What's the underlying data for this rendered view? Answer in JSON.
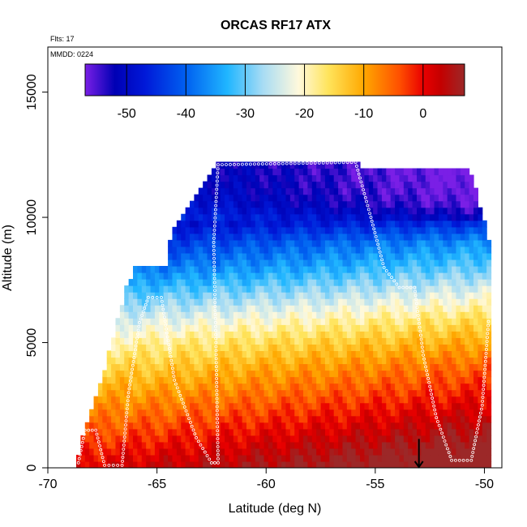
{
  "chart_data": {
    "type": "heatmap",
    "title": "ORCAS RF17 ATX",
    "annotations": {
      "flights": "Flts: 17",
      "date": "MMDD: 0224"
    },
    "xlabel": "Latitude (deg N)",
    "ylabel": "Altitude (m)",
    "xlim": [
      -70,
      -49.2
    ],
    "ylim": [
      0,
      16800
    ],
    "x_ticks": [
      -70,
      -65,
      -60,
      -55,
      -50
    ],
    "y_ticks": [
      0,
      5000,
      10000,
      15000
    ],
    "x_tick_labels": [
      "-70",
      "-65",
      "-60",
      "-55",
      "-50"
    ],
    "y_tick_labels": [
      "0",
      "5000",
      "10000",
      "15000"
    ],
    "colorbar": {
      "range": [
        -57,
        7
      ],
      "ticks": [
        -50,
        -40,
        -30,
        -20,
        -10,
        0
      ],
      "tick_labels": [
        "-50",
        "-40",
        "-30",
        "-20",
        "-10",
        "0"
      ],
      "stops": [
        {
          "v": -57,
          "c": "#7a1fe6"
        },
        {
          "v": -52,
          "c": "#0000b4"
        },
        {
          "v": -47,
          "c": "#0018d8"
        },
        {
          "v": -40,
          "c": "#0060f0"
        },
        {
          "v": -33,
          "c": "#20b6ff"
        },
        {
          "v": -27,
          "c": "#a8dcf4"
        },
        {
          "v": -21,
          "c": "#fff9dc"
        },
        {
          "v": -16,
          "c": "#ffe45c"
        },
        {
          "v": -10,
          "c": "#ffa800"
        },
        {
          "v": -4,
          "c": "#ff5000"
        },
        {
          "v": 0,
          "c": "#ea0000"
        },
        {
          "v": 3,
          "c": "#c40000"
        },
        {
          "v": 7,
          "c": "#9c2828"
        }
      ]
    },
    "coverage_top": [
      {
        "lat": -68.7,
        "alt": 400
      },
      {
        "lat": -68.5,
        "alt": 700
      },
      {
        "lat": -68.4,
        "alt": 1200
      },
      {
        "lat": -68.2,
        "alt": 1800
      },
      {
        "lat": -67.9,
        "alt": 2600
      },
      {
        "lat": -67.6,
        "alt": 3300
      },
      {
        "lat": -67.2,
        "alt": 4700
      },
      {
        "lat": -66.9,
        "alt": 5600
      },
      {
        "lat": -66.6,
        "alt": 6500
      },
      {
        "lat": -66.4,
        "alt": 7300
      },
      {
        "lat": -66.0,
        "alt": 8000
      },
      {
        "lat": -64.6,
        "alt": 8000
      },
      {
        "lat": -64.3,
        "alt": 9500
      },
      {
        "lat": -63.7,
        "alt": 10300
      },
      {
        "lat": -63.1,
        "alt": 11000
      },
      {
        "lat": -62.6,
        "alt": 11600
      },
      {
        "lat": -62.2,
        "alt": 12200
      },
      {
        "lat": -55.9,
        "alt": 12200
      },
      {
        "lat": -55.5,
        "alt": 11900
      },
      {
        "lat": -50.7,
        "alt": 11900
      },
      {
        "lat": -50.4,
        "alt": 11200
      },
      {
        "lat": -50.2,
        "alt": 10500
      },
      {
        "lat": -49.9,
        "alt": 9500
      },
      {
        "lat": -49.7,
        "alt": 8500
      },
      {
        "lat": -49.7,
        "alt": 0
      }
    ],
    "temperature_profile": [
      {
        "alt": 0,
        "t": 1
      },
      {
        "alt": 1000,
        "t": -3
      },
      {
        "alt": 2000,
        "t": -7
      },
      {
        "alt": 3000,
        "t": -11
      },
      {
        "alt": 4000,
        "t": -15
      },
      {
        "alt": 5000,
        "t": -20
      },
      {
        "alt": 6000,
        "t": -26
      },
      {
        "alt": 7000,
        "t": -33
      },
      {
        "alt": 8000,
        "t": -40
      },
      {
        "alt": 9000,
        "t": -46
      },
      {
        "alt": 10000,
        "t": -51
      },
      {
        "alt": 11000,
        "t": -54
      },
      {
        "alt": 12000,
        "t": -55
      }
    ],
    "flight_track": [
      {
        "lat": -68.6,
        "alt": 200
      },
      {
        "lat": -68.3,
        "alt": 1500
      },
      {
        "lat": -67.8,
        "alt": 1500
      },
      {
        "lat": -67.4,
        "alt": 100
      },
      {
        "lat": -66.6,
        "alt": 100
      },
      {
        "lat": -66.3,
        "alt": 3000
      },
      {
        "lat": -65.8,
        "alt": 5800
      },
      {
        "lat": -65.4,
        "alt": 6800
      },
      {
        "lat": -64.8,
        "alt": 6800
      },
      {
        "lat": -64.2,
        "alt": 3500
      },
      {
        "lat": -63.2,
        "alt": 1200
      },
      {
        "lat": -62.5,
        "alt": 200
      },
      {
        "lat": -62.2,
        "alt": 200
      },
      {
        "lat": -62.3,
        "alt": 5000
      },
      {
        "lat": -62.4,
        "alt": 9000
      },
      {
        "lat": -62.2,
        "alt": 12100
      },
      {
        "lat": -55.9,
        "alt": 12200
      },
      {
        "lat": -55.2,
        "alt": 10000
      },
      {
        "lat": -54.6,
        "alt": 8000
      },
      {
        "lat": -53.9,
        "alt": 7200
      },
      {
        "lat": -53.2,
        "alt": 7200
      },
      {
        "lat": -52.8,
        "alt": 4500
      },
      {
        "lat": -52.2,
        "alt": 2000
      },
      {
        "lat": -51.5,
        "alt": 300
      },
      {
        "lat": -50.6,
        "alt": 300
      },
      {
        "lat": -50.1,
        "alt": 2500
      },
      {
        "lat": -49.8,
        "alt": 6000
      }
    ],
    "marker": {
      "lat": -53.0,
      "alt": 700
    }
  }
}
